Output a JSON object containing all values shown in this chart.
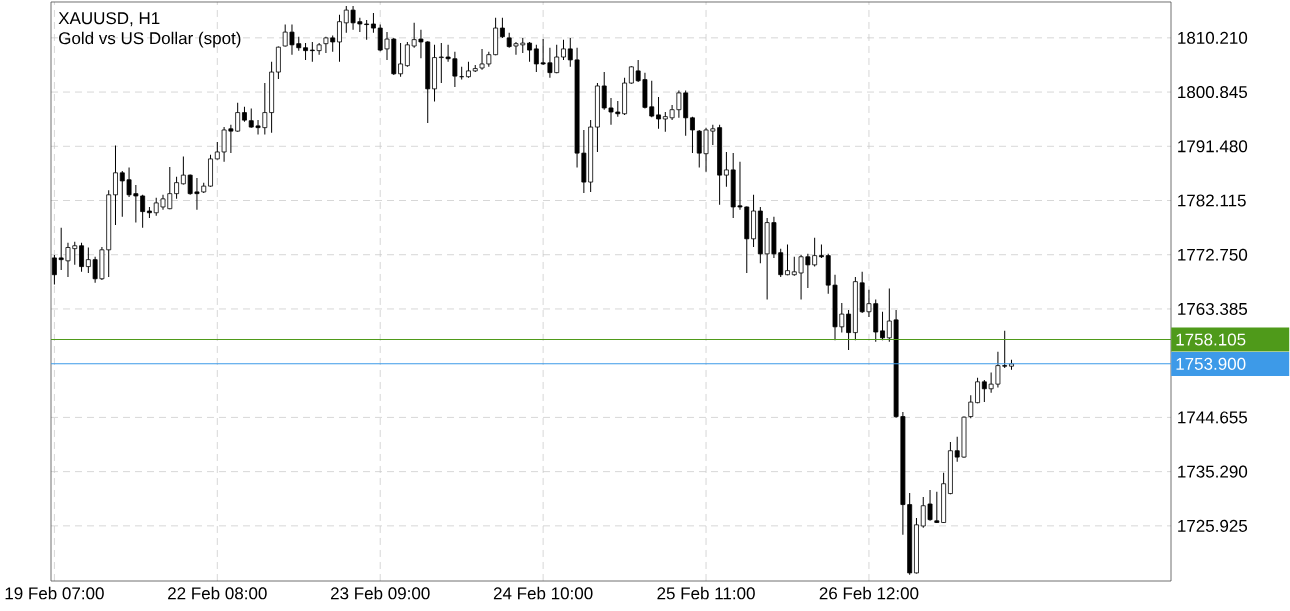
{
  "chart_data": {
    "type": "candlestick",
    "title": "XAUUSD, H1",
    "subtitle": "Gold vs US Dollar (spot)",
    "categories": [
      "19 Feb 07:00",
      null,
      null,
      null,
      null,
      null,
      null,
      null,
      null,
      null,
      null,
      null,
      null,
      null,
      null,
      null,
      null,
      null,
      null,
      null,
      null,
      null,
      null,
      null,
      "22 Feb 08:00",
      null,
      null,
      null,
      null,
      null,
      null,
      null,
      null,
      null,
      null,
      null,
      null,
      null,
      null,
      null,
      null,
      null,
      null,
      null,
      null,
      null,
      null,
      null,
      "23 Feb 09:00",
      null,
      null,
      null,
      null,
      null,
      null,
      null,
      null,
      null,
      null,
      null,
      null,
      null,
      null,
      null,
      null,
      null,
      null,
      null,
      null,
      null,
      null,
      null,
      "24 Feb 10:00",
      null,
      null,
      null,
      null,
      null,
      null,
      null,
      null,
      null,
      null,
      null,
      null,
      null,
      null,
      null,
      null,
      null,
      null,
      null,
      null,
      null,
      null,
      null,
      "25 Feb 11:00",
      null,
      null,
      null,
      null,
      null,
      null,
      null,
      null,
      null,
      null,
      null,
      null,
      null,
      null,
      null,
      null,
      null,
      null,
      null,
      null,
      null,
      null,
      null,
      "26 Feb 12:00",
      null,
      null,
      null,
      null,
      null,
      null,
      null,
      null,
      null,
      null,
      null,
      null,
      null,
      null,
      null,
      null,
      null,
      null,
      null,
      null,
      null,
      null,
      null,
      null,
      null,
      null,
      null,
      null,
      null,
      null,
      null,
      null,
      null,
      null,
      null,
      null,
      null,
      null,
      null,
      null,
      null,
      null,
      null,
      null
    ],
    "ohlc": [
      [
        1772.2,
        1772.7,
        1767.6,
        1769.3
      ],
      [
        1772.2,
        1777.4,
        1770.1,
        1771.9
      ],
      [
        1771.7,
        1774.8,
        1768.9,
        1774.0
      ],
      [
        1773.8,
        1775.0,
        1771.0,
        1774.3
      ],
      [
        1774.3,
        1774.8,
        1769.8,
        1770.7
      ],
      [
        1770.7,
        1774.0,
        1769.6,
        1771.9
      ],
      [
        1771.9,
        1772.4,
        1767.9,
        1768.6
      ],
      [
        1768.6,
        1774.1,
        1768.4,
        1773.6
      ],
      [
        1773.6,
        1783.9,
        1768.9,
        1783.1
      ],
      [
        1783.1,
        1791.6,
        1777.9,
        1786.9
      ],
      [
        1786.9,
        1787.2,
        1779.3,
        1785.5
      ],
      [
        1785.7,
        1787.8,
        1782.7,
        1783.1
      ],
      [
        1783.3,
        1784.8,
        1778.3,
        1782.9
      ],
      [
        1782.9,
        1783.1,
        1777.4,
        1780.2
      ],
      [
        1780.3,
        1781.0,
        1779.1,
        1780.0
      ],
      [
        1780.0,
        1782.6,
        1779.5,
        1781.7
      ],
      [
        1781.0,
        1783.1,
        1780.5,
        1782.4
      ],
      [
        1780.7,
        1787.9,
        1780.6,
        1783.3
      ],
      [
        1783.3,
        1786.2,
        1782.4,
        1785.2
      ],
      [
        1785.0,
        1789.7,
        1784.9,
        1786.5
      ],
      [
        1786.5,
        1786.6,
        1783.1,
        1783.3
      ],
      [
        1783.6,
        1786.0,
        1780.5,
        1783.3
      ],
      [
        1783.6,
        1785.2,
        1783.4,
        1784.6
      ],
      [
        1784.6,
        1790.0,
        1784.5,
        1789.3
      ],
      [
        1789.3,
        1792.2,
        1789.2,
        1790.5
      ],
      [
        1790.5,
        1794.8,
        1788.8,
        1794.3
      ],
      [
        1794.5,
        1795.2,
        1790.3,
        1794.1
      ],
      [
        1794.1,
        1799.0,
        1794.0,
        1797.3
      ],
      [
        1797.3,
        1798.3,
        1795.7,
        1796.0
      ],
      [
        1795.9,
        1798.0,
        1794.7,
        1794.8
      ],
      [
        1795.0,
        1796.0,
        1793.5,
        1794.7
      ],
      [
        1794.7,
        1802.4,
        1793.5,
        1797.3
      ],
      [
        1797.3,
        1806.1,
        1793.8,
        1804.3
      ],
      [
        1804.3,
        1808.7,
        1803.1,
        1808.6
      ],
      [
        1808.8,
        1812.5,
        1808.7,
        1811.2
      ],
      [
        1811.2,
        1812.5,
        1807.3,
        1809.0
      ],
      [
        1809.2,
        1810.4,
        1808.0,
        1808.5
      ],
      [
        1808.5,
        1809.3,
        1806.4,
        1808.0
      ],
      [
        1808.1,
        1809.5,
        1806.1,
        1808.0
      ],
      [
        1808.0,
        1809.3,
        1807.3,
        1809.0
      ],
      [
        1809.2,
        1810.4,
        1807.6,
        1810.2
      ],
      [
        1810.2,
        1810.6,
        1807.8,
        1809.5
      ],
      [
        1809.5,
        1814.2,
        1806.1,
        1813.0
      ],
      [
        1812.8,
        1815.7,
        1811.1,
        1815.0
      ],
      [
        1815.0,
        1815.7,
        1811.6,
        1812.8
      ],
      [
        1813.0,
        1813.7,
        1811.2,
        1812.6
      ],
      [
        1812.6,
        1813.3,
        1809.9,
        1812.5
      ],
      [
        1812.6,
        1814.5,
        1811.1,
        1811.9
      ],
      [
        1811.9,
        1812.5,
        1807.9,
        1808.1
      ],
      [
        1808.3,
        1811.2,
        1806.4,
        1810.0
      ],
      [
        1810.0,
        1810.2,
        1803.8,
        1804.0
      ],
      [
        1804.0,
        1809.3,
        1803.5,
        1805.7
      ],
      [
        1805.4,
        1809.5,
        1805.2,
        1809.0
      ],
      [
        1808.8,
        1812.8,
        1808.5,
        1809.9
      ],
      [
        1810.0,
        1811.6,
        1806.7,
        1809.5
      ],
      [
        1809.5,
        1809.6,
        1795.5,
        1801.4
      ],
      [
        1801.4,
        1809.0,
        1799.2,
        1806.8
      ],
      [
        1806.8,
        1809.3,
        1802.4,
        1806.9
      ],
      [
        1806.9,
        1809.0,
        1806.1,
        1806.6
      ],
      [
        1806.6,
        1807.8,
        1801.7,
        1803.6
      ],
      [
        1803.5,
        1805.2,
        1803.0,
        1803.5
      ],
      [
        1803.5,
        1806.1,
        1803.3,
        1804.5
      ],
      [
        1804.5,
        1805.5,
        1804.3,
        1804.9
      ],
      [
        1805.0,
        1808.3,
        1804.7,
        1805.7
      ],
      [
        1805.7,
        1807.8,
        1805.2,
        1807.3
      ],
      [
        1807.3,
        1813.7,
        1807.2,
        1811.9
      ],
      [
        1811.9,
        1813.7,
        1810.2,
        1810.4
      ],
      [
        1810.2,
        1811.1,
        1808.5,
        1808.7
      ],
      [
        1808.8,
        1809.5,
        1807.3,
        1809.2
      ],
      [
        1809.0,
        1810.2,
        1807.6,
        1809.3
      ],
      [
        1809.3,
        1809.5,
        1806.1,
        1808.1
      ],
      [
        1808.3,
        1809.0,
        1804.3,
        1805.7
      ],
      [
        1805.9,
        1810.0,
        1805.5,
        1805.7
      ],
      [
        1805.9,
        1808.5,
        1803.3,
        1804.2
      ],
      [
        1804.2,
        1809.0,
        1804.1,
        1806.9
      ],
      [
        1806.9,
        1809.9,
        1806.4,
        1808.3
      ],
      [
        1808.3,
        1810.2,
        1805.2,
        1806.4
      ],
      [
        1806.4,
        1808.5,
        1787.8,
        1790.3
      ],
      [
        1790.3,
        1794.3,
        1783.4,
        1785.3
      ],
      [
        1785.3,
        1796.0,
        1783.6,
        1794.8
      ],
      [
        1794.8,
        1802.4,
        1790.5,
        1801.9
      ],
      [
        1801.9,
        1804.3,
        1797.8,
        1798.1
      ],
      [
        1798.1,
        1799.8,
        1795.2,
        1797.4
      ],
      [
        1797.4,
        1799.3,
        1796.6,
        1797.1
      ],
      [
        1797.1,
        1803.3,
        1796.9,
        1802.4
      ],
      [
        1802.4,
        1805.3,
        1802.3,
        1805.2
      ],
      [
        1804.5,
        1806.4,
        1802.6,
        1802.8
      ],
      [
        1803.0,
        1804.2,
        1798.0,
        1798.2
      ],
      [
        1798.3,
        1802.8,
        1796.5,
        1796.7
      ],
      [
        1796.9,
        1800.0,
        1794.5,
        1796.2
      ],
      [
        1796.2,
        1797.4,
        1794.0,
        1796.6
      ],
      [
        1796.4,
        1798.6,
        1796.0,
        1797.8
      ],
      [
        1797.8,
        1801.1,
        1796.4,
        1800.7
      ],
      [
        1800.7,
        1801.1,
        1793.3,
        1796.4
      ],
      [
        1796.4,
        1796.6,
        1790.3,
        1794.3
      ],
      [
        1794.1,
        1794.3,
        1787.8,
        1790.3
      ],
      [
        1790.2,
        1794.7,
        1787.1,
        1794.3
      ],
      [
        1794.1,
        1795.2,
        1791.7,
        1794.5
      ],
      [
        1794.7,
        1795.2,
        1781.4,
        1786.5
      ],
      [
        1786.5,
        1790.5,
        1784.5,
        1787.4
      ],
      [
        1787.4,
        1790.3,
        1779.1,
        1781.0
      ],
      [
        1781.2,
        1788.8,
        1780.5,
        1781.0
      ],
      [
        1781.0,
        1781.1,
        1769.6,
        1775.5
      ],
      [
        1775.5,
        1783.1,
        1774.1,
        1780.3
      ],
      [
        1780.3,
        1781.0,
        1771.3,
        1772.9
      ],
      [
        1772.9,
        1779.1,
        1765.0,
        1778.3
      ],
      [
        1778.3,
        1779.3,
        1772.2,
        1772.9
      ],
      [
        1773.1,
        1773.8,
        1768.9,
        1769.3
      ],
      [
        1769.3,
        1774.5,
        1769.2,
        1770.0
      ],
      [
        1769.3,
        1772.4,
        1769.1,
        1769.8
      ],
      [
        1769.6,
        1772.7,
        1765.0,
        1772.4
      ],
      [
        1772.4,
        1772.9,
        1767.0,
        1771.0
      ],
      [
        1771.0,
        1775.7,
        1770.7,
        1772.6
      ],
      [
        1772.6,
        1774.5,
        1772.2,
        1772.4
      ],
      [
        1772.6,
        1772.9,
        1766.0,
        1767.5
      ],
      [
        1767.5,
        1769.3,
        1758.0,
        1760.3
      ],
      [
        1760.3,
        1764.4,
        1759.3,
        1762.5
      ],
      [
        1762.5,
        1763.2,
        1756.3,
        1759.3
      ],
      [
        1759.3,
        1768.9,
        1758.0,
        1768.1
      ],
      [
        1767.9,
        1769.8,
        1762.7,
        1762.9
      ],
      [
        1762.9,
        1766.7,
        1762.0,
        1764.3
      ],
      [
        1764.3,
        1765.0,
        1757.7,
        1759.4
      ],
      [
        1759.6,
        1762.9,
        1758.0,
        1758.4
      ],
      [
        1758.4,
        1766.9,
        1757.7,
        1761.3
      ],
      [
        1761.5,
        1763.2,
        1744.6,
        1744.8
      ],
      [
        1744.8,
        1745.6,
        1724.4,
        1729.6
      ],
      [
        1729.6,
        1731.6,
        1717.5,
        1717.8
      ],
      [
        1717.8,
        1727.3,
        1717.7,
        1726.1
      ],
      [
        1725.9,
        1730.9,
        1725.6,
        1729.4
      ],
      [
        1729.7,
        1732.1,
        1726.8,
        1727.0
      ],
      [
        1726.8,
        1731.8,
        1726.4,
        1726.5
      ],
      [
        1726.5,
        1735.1,
        1726.4,
        1733.2
      ],
      [
        1731.5,
        1740.4,
        1731.4,
        1738.9
      ],
      [
        1738.9,
        1741.3,
        1737.0,
        1737.8
      ],
      [
        1737.8,
        1744.8,
        1737.7,
        1744.7
      ],
      [
        1744.8,
        1748.5,
        1744.5,
        1747.3
      ],
      [
        1747.2,
        1751.5,
        1747.1,
        1750.8
      ],
      [
        1750.8,
        1751.1,
        1747.3,
        1749.6
      ],
      [
        1749.6,
        1752.4,
        1748.9,
        1750.4
      ],
      [
        1750.4,
        1756.0,
        1749.8,
        1753.6
      ],
      [
        1753.6,
        1759.6,
        1753.2,
        1753.5
      ],
      [
        1753.5,
        1754.6,
        1752.9,
        1753.9
      ],
      null,
      null,
      null,
      null,
      null,
      null,
      null,
      null,
      null,
      null,
      null,
      null,
      null,
      null,
      null,
      null,
      null,
      null,
      null,
      null,
      null,
      null,
      null
    ],
    "ylim": [
      1716.4,
      1816.4
    ],
    "yticks": [
      1725.925,
      {
        "value": 1735.29,
        "label": "1735.290"
      },
      1744.655,
      1763.385,
      {
        "value": 1772.75,
        "label": "1772.750"
      },
      1782.115,
      {
        "value": 1791.48,
        "label": "1791.480"
      },
      1800.845,
      {
        "value": 1810.21,
        "label": "1810.210"
      }
    ],
    "ref_lines": [
      {
        "axis": "y",
        "value": 1758.105,
        "label": "1758.105",
        "color": "#4f9a1a"
      },
      {
        "axis": "y",
        "value": 1753.9,
        "label": "1753.900",
        "color": "#3d9ae8"
      }
    ],
    "grid": true
  }
}
